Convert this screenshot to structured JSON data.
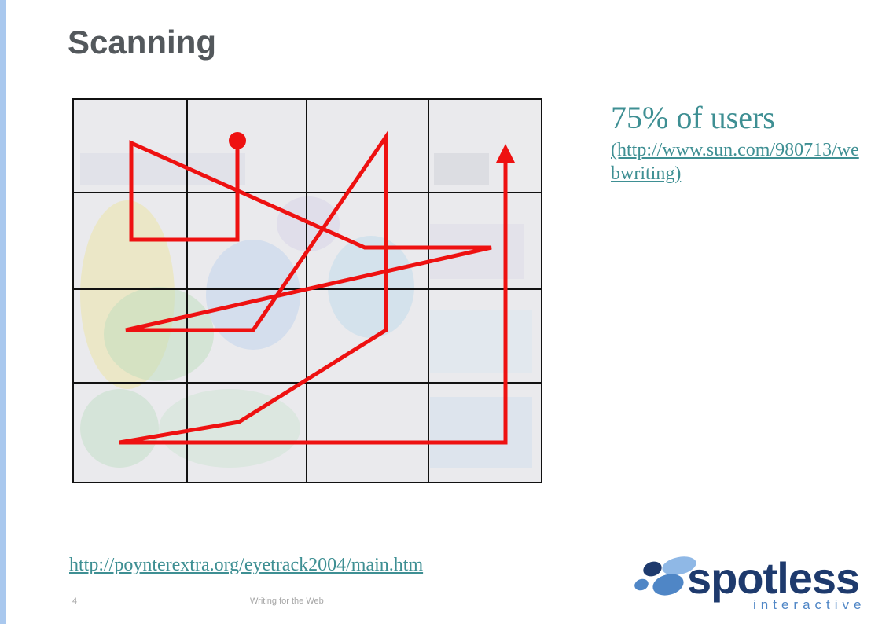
{
  "slide": {
    "title": "Scanning",
    "page_number": "4",
    "footer_title": "Writing for the Web"
  },
  "stat": {
    "headline": "75% of users",
    "link": "(http://www.sun.com/980713/webwriting)"
  },
  "source_link": "http://poynterextra.org/eyetrack2004/main.htm",
  "logo": {
    "word": "spotless",
    "sub": "interactive"
  },
  "colors": {
    "accent_bar": "#a9c8ee",
    "title": "#53585c",
    "link": "#3e8f93",
    "scan_path": "#ee1111",
    "logo_dark": "#1e3a6d",
    "logo_light": "#4f86c6"
  },
  "icons": [
    "scan-path-arrow-icon",
    "spotless-logo-icon"
  ]
}
